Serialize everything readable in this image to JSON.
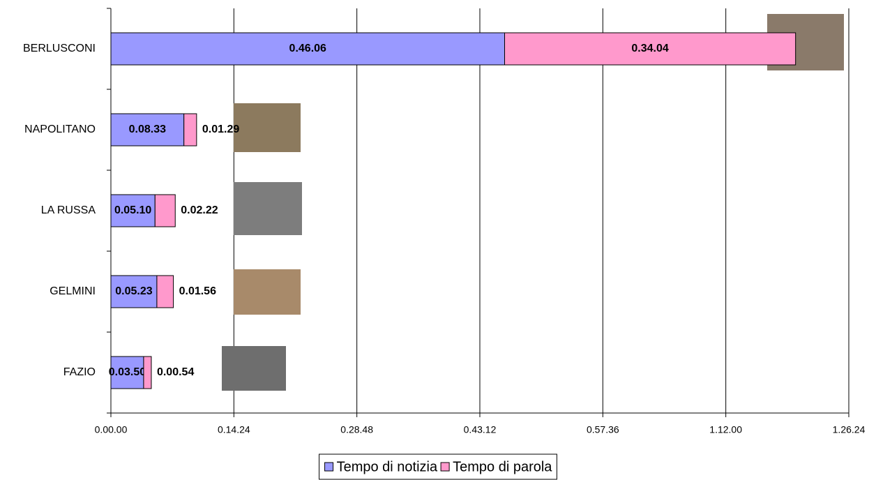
{
  "chart_data": {
    "type": "bar",
    "orientation": "horizontal",
    "stacked": true,
    "categories": [
      "BERLUSCONI",
      "NAPOLITANO",
      "LA RUSSA",
      "GELMINI",
      "FAZIO"
    ],
    "series": [
      {
        "name": "Tempo di notizia",
        "color": "#9999ff",
        "values": [
          2766,
          513,
          310,
          323,
          230
        ],
        "value_labels": [
          "0.46.06",
          "0.08.33",
          "0.05.10",
          "0.05.23",
          "0.03.50"
        ]
      },
      {
        "name": "Tempo di parola",
        "color": "#ff99cc",
        "values": [
          2044,
          89,
          142,
          116,
          54
        ],
        "value_labels": [
          "0.34.04",
          "0.01.29",
          "0.02.22",
          "0.01.56",
          "0.00.54"
        ]
      }
    ],
    "xlim": [
      0,
      5184
    ],
    "xticks": [
      {
        "value": 0,
        "label": "0.00.00"
      },
      {
        "value": 864,
        "label": "0.14.24"
      },
      {
        "value": 1728,
        "label": "0.28.48"
      },
      {
        "value": 2592,
        "label": "0.43.12"
      },
      {
        "value": 3456,
        "label": "0.57.36"
      },
      {
        "value": 4320,
        "label": "1.12.00"
      },
      {
        "value": 5184,
        "label": "1.26.24"
      }
    ],
    "grid": true,
    "legend": "bottom"
  }
}
